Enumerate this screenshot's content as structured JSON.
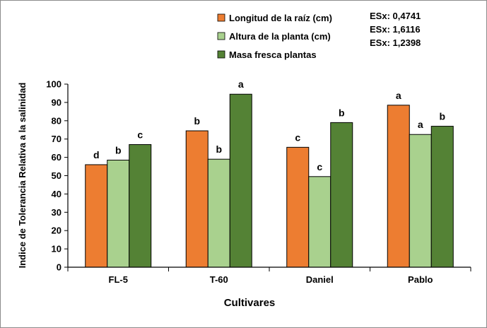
{
  "chart_data": {
    "type": "bar",
    "title": "",
    "xlabel": "Cultivares",
    "ylabel": "Indice de Tolerancia Relativa a la salinidad",
    "ylim": [
      0,
      100
    ],
    "yticks": [
      0,
      10,
      20,
      30,
      40,
      50,
      60,
      70,
      80,
      90,
      100
    ],
    "grid": false,
    "legend_position": "top-right",
    "categories": [
      "FL-5",
      "T-60",
      "Daniel",
      "Pablo"
    ],
    "series": [
      {
        "name": "Longitud de la raíz (cm)",
        "color": "#ED7D31",
        "values": [
          56,
          74.5,
          65.5,
          88.5
        ],
        "labels": [
          "d",
          "b",
          "c",
          "a"
        ]
      },
      {
        "name": "Altura  de la planta (cm)",
        "color": "#A9D18E",
        "values": [
          58.5,
          59,
          49.5,
          72.5
        ],
        "labels": [
          "b",
          "b",
          "c",
          "a"
        ]
      },
      {
        "name": "Masa fresca plantas",
        "color": "#548235",
        "values": [
          67,
          94.5,
          79,
          77
        ],
        "labels": [
          "c",
          "a",
          "b",
          "b"
        ]
      }
    ],
    "annotations": [
      "ESx: 0,4741",
      "ESx: 1,6116",
      "ESx: 1,2398"
    ]
  }
}
